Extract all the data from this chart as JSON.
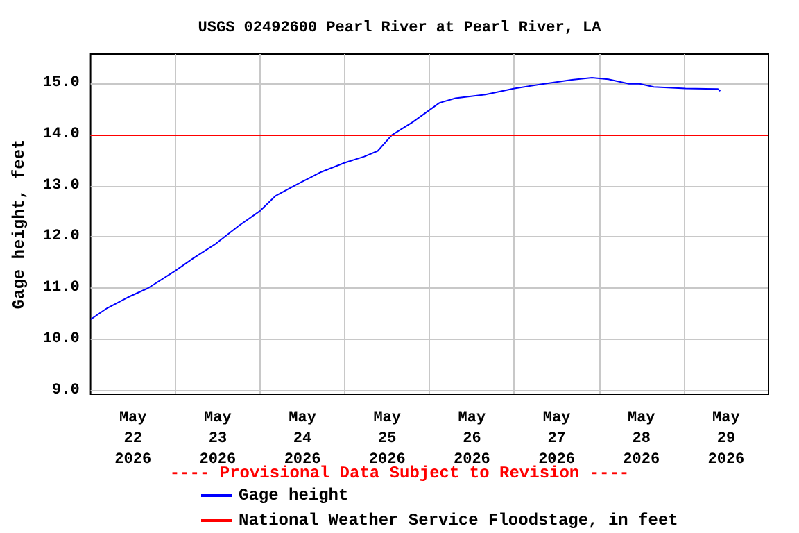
{
  "chart_data": {
    "type": "line",
    "title": "USGS 02492600 Pearl River at Pearl River, LA",
    "ylabel": "Gage height, feet",
    "annotations": [
      "---- Provisional Data Subject to Revision ----"
    ],
    "xlim": [
      "2026-05-22T00:00",
      "2026-05-30T00:00"
    ],
    "xticks": [
      {
        "value": "2026-05-22T12:00",
        "label": "May\n22\n2026"
      },
      {
        "value": "2026-05-23T00:00",
        "label": null
      },
      {
        "value": "2026-05-23T12:00",
        "label": "May\n23\n2026"
      },
      {
        "value": "2026-05-24T00:00",
        "label": null
      },
      {
        "value": "2026-05-24T12:00",
        "label": "May\n24\n2026"
      },
      {
        "value": "2026-05-25T00:00",
        "label": null
      },
      {
        "value": "2026-05-25T12:00",
        "label": "May\n25\n2026"
      },
      {
        "value": "2026-05-26T00:00",
        "label": null
      },
      {
        "value": "2026-05-26T12:00",
        "label": "May\n26\n2026"
      },
      {
        "value": "2026-05-27T00:00",
        "label": null
      },
      {
        "value": "2026-05-27T12:00",
        "label": "May\n27\n2026"
      },
      {
        "value": "2026-05-28T00:00",
        "label": null
      },
      {
        "value": "2026-05-28T12:00",
        "label": "May\n28\n2026"
      },
      {
        "value": "2026-05-29T00:00",
        "label": null
      },
      {
        "value": "2026-05-29T12:00",
        "label": "May\n29\n2026"
      }
    ],
    "ylim": [
      8.93,
      15.57
    ],
    "yticks": [
      {
        "value": 9,
        "label": "9.0"
      },
      {
        "value": 10,
        "label": "10.0"
      },
      {
        "value": 11,
        "label": "11.0"
      },
      {
        "value": 12,
        "label": "12.0"
      },
      {
        "value": 13,
        "label": "13.0"
      },
      {
        "value": 14,
        "label": "14.0"
      },
      {
        "value": 15,
        "label": "15.0"
      }
    ],
    "grid": true,
    "legend": "bottom",
    "marker": "none",
    "line_style": "solid",
    "ref_lines": [
      {
        "axis": "y",
        "value": 14,
        "label": "National Weather Service Floodstage, in feet",
        "color": "#ff0000"
      }
    ],
    "series": [
      {
        "name": "Gage height",
        "color": "#0000ff",
        "x": [
          "2026-05-22T00:00",
          "2026-05-22T04:40",
          "2026-05-22T10:30",
          "2026-05-22T16:15",
          "2026-05-23T00:00",
          "2026-05-23T05:00",
          "2026-05-23T11:30",
          "2026-05-23T18:00",
          "2026-05-24T00:00",
          "2026-05-24T04:20",
          "2026-05-24T10:50",
          "2026-05-24T17:20",
          "2026-05-25T00:00",
          "2026-05-25T05:30",
          "2026-05-25T09:20",
          "2026-05-25T13:20",
          "2026-05-25T19:10",
          "2026-05-26T02:50",
          "2026-05-26T07:20",
          "2026-05-26T15:50",
          "2026-05-27T00:00",
          "2026-05-27T08:30",
          "2026-05-27T16:20",
          "2026-05-27T22:00",
          "2026-05-28T02:40",
          "2026-05-28T08:30",
          "2026-05-28T11:30",
          "2026-05-28T15:30",
          "2026-05-29T00:30",
          "2026-05-29T09:40",
          "2026-05-29T10:20"
        ],
        "values": [
          10.39,
          10.61,
          10.82,
          11.0,
          11.34,
          11.58,
          11.87,
          12.22,
          12.51,
          12.8,
          13.04,
          13.27,
          13.45,
          13.57,
          13.68,
          13.99,
          14.24,
          14.62,
          14.71,
          14.78,
          14.9,
          14.99,
          15.07,
          15.11,
          15.08,
          14.99,
          14.99,
          14.93,
          14.9,
          14.89,
          14.85
        ]
      }
    ]
  }
}
